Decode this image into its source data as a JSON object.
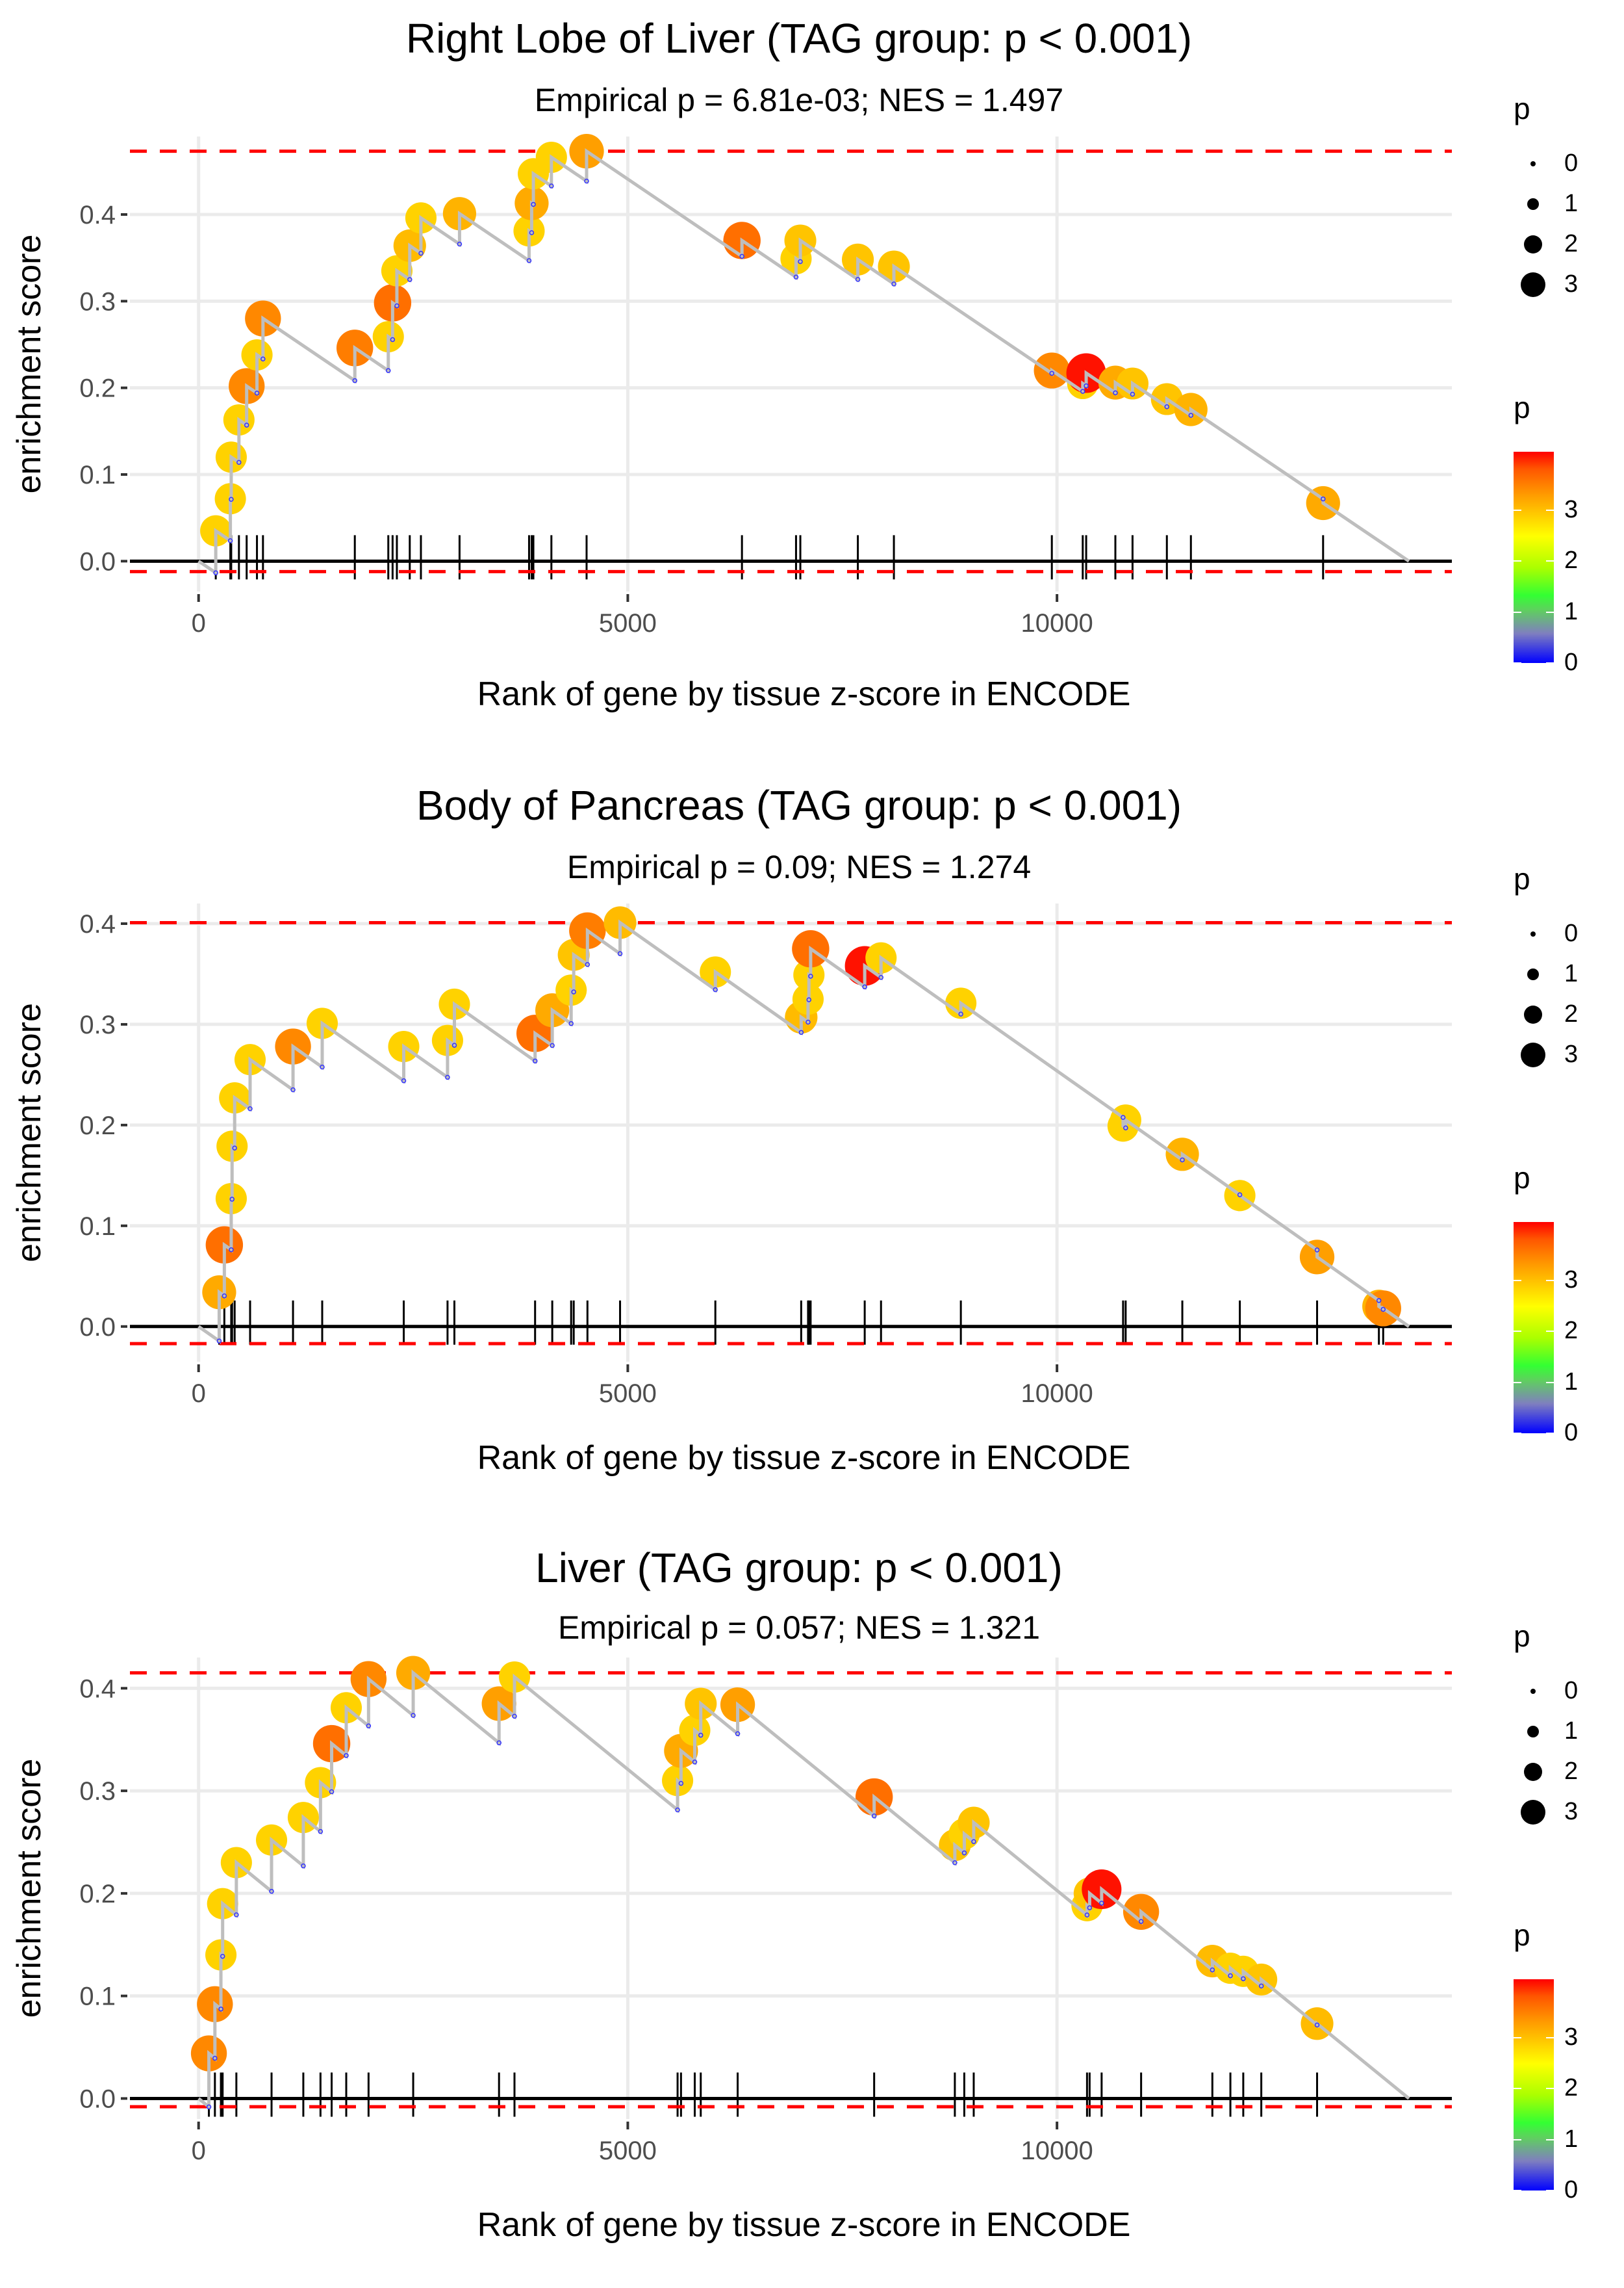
{
  "chart_data": [
    {
      "type": "line",
      "title": "Right Lobe of Liver (TAG group: p < 0.001)",
      "subtitle": "Empirical p = 6.81e-03; NES = 1.497",
      "xlabel": "Rank of gene by tissue z-score in ENCODE",
      "ylabel": "enrichment score",
      "xlim": [
        -800,
        14600
      ],
      "ylim": [
        -0.035,
        0.49
      ],
      "xticks": [
        0,
        5000,
        10000
      ],
      "xtick_labels": [
        "0",
        "5000",
        "10000"
      ],
      "yticks": [
        0.0,
        0.1,
        0.2,
        0.3,
        0.4
      ],
      "ytick_labels": [
        "0.0",
        "0.1",
        "0.2",
        "0.3",
        "0.4"
      ],
      "max_es": 0.473,
      "min_es": -0.012,
      "end_rank": 14100,
      "grid": true,
      "points": [
        {
          "rank": 200,
          "es": 0.035,
          "p": 2.7
        },
        {
          "rank": 370,
          "es": 0.072,
          "p": 2.7
        },
        {
          "rank": 380,
          "es": 0.12,
          "p": 2.7
        },
        {
          "rank": 470,
          "es": 0.163,
          "p": 2.7
        },
        {
          "rank": 560,
          "es": 0.202,
          "p": 3.4
        },
        {
          "rank": 680,
          "es": 0.238,
          "p": 2.7
        },
        {
          "rank": 750,
          "es": 0.28,
          "p": 3.4
        },
        {
          "rank": 1820,
          "es": 0.246,
          "p": 3.5
        },
        {
          "rank": 2210,
          "es": 0.259,
          "p": 2.7
        },
        {
          "rank": 2260,
          "es": 0.298,
          "p": 3.6
        },
        {
          "rank": 2310,
          "es": 0.335,
          "p": 2.7
        },
        {
          "rank": 2460,
          "es": 0.364,
          "p": 2.9
        },
        {
          "rank": 2590,
          "es": 0.396,
          "p": 2.7
        },
        {
          "rank": 3040,
          "es": 0.401,
          "p": 3.0
        },
        {
          "rank": 3850,
          "es": 0.381,
          "p": 2.7
        },
        {
          "rank": 3880,
          "es": 0.413,
          "p": 3.1
        },
        {
          "rank": 3900,
          "es": 0.447,
          "p": 2.7
        },
        {
          "rank": 4110,
          "es": 0.466,
          "p": 2.7
        },
        {
          "rank": 4520,
          "es": 0.473,
          "p": 3.2
        },
        {
          "rank": 6330,
          "es": 0.37,
          "p": 3.6
        },
        {
          "rank": 6960,
          "es": 0.349,
          "p": 2.7
        },
        {
          "rank": 7010,
          "es": 0.37,
          "p": 2.8
        },
        {
          "rank": 7680,
          "es": 0.348,
          "p": 2.8
        },
        {
          "rank": 8100,
          "es": 0.34,
          "p": 2.8
        },
        {
          "rank": 9940,
          "es": 0.22,
          "p": 3.4
        },
        {
          "rank": 10300,
          "es": 0.205,
          "p": 2.7
        },
        {
          "rank": 10340,
          "es": 0.217,
          "p": 3.95
        },
        {
          "rank": 10680,
          "es": 0.206,
          "p": 3.1
        },
        {
          "rank": 10880,
          "es": 0.205,
          "p": 2.8
        },
        {
          "rank": 11280,
          "es": 0.187,
          "p": 2.8
        },
        {
          "rank": 11560,
          "es": 0.175,
          "p": 3.0
        },
        {
          "rank": 13100,
          "es": 0.067,
          "p": 3.1
        }
      ]
    },
    {
      "type": "line",
      "title": "Body of Pancreas (TAG group: p < 0.001)",
      "subtitle": "Empirical p = 0.09; NES = 1.274",
      "xlabel": "Rank of gene by tissue z-score in ENCODE",
      "ylabel": "enrichment score",
      "xlim": [
        -800,
        14600
      ],
      "ylim": [
        -0.035,
        0.42
      ],
      "xticks": [
        0,
        5000,
        10000
      ],
      "xtick_labels": [
        "0",
        "5000",
        "10000"
      ],
      "yticks": [
        0.0,
        0.1,
        0.2,
        0.3,
        0.4
      ],
      "ytick_labels": [
        "0.0",
        "0.1",
        "0.2",
        "0.3",
        "0.4"
      ],
      "max_es": 0.401,
      "min_es": -0.017,
      "end_rank": 14100,
      "grid": true,
      "points": [
        {
          "rank": 240,
          "es": 0.034,
          "p": 3.1
        },
        {
          "rank": 300,
          "es": 0.081,
          "p": 3.6
        },
        {
          "rank": 380,
          "es": 0.127,
          "p": 2.7
        },
        {
          "rank": 390,
          "es": 0.179,
          "p": 2.7
        },
        {
          "rank": 420,
          "es": 0.227,
          "p": 2.7
        },
        {
          "rank": 600,
          "es": 0.265,
          "p": 2.7
        },
        {
          "rank": 1100,
          "es": 0.278,
          "p": 3.4
        },
        {
          "rank": 1440,
          "es": 0.301,
          "p": 2.7
        },
        {
          "rank": 2390,
          "es": 0.278,
          "p": 2.7
        },
        {
          "rank": 2900,
          "es": 0.284,
          "p": 2.7
        },
        {
          "rank": 2980,
          "es": 0.32,
          "p": 2.7
        },
        {
          "rank": 3920,
          "es": 0.291,
          "p": 3.6
        },
        {
          "rank": 4120,
          "es": 0.314,
          "p": 3.1
        },
        {
          "rank": 4340,
          "es": 0.334,
          "p": 2.7
        },
        {
          "rank": 4370,
          "es": 0.369,
          "p": 2.8
        },
        {
          "rank": 4530,
          "es": 0.393,
          "p": 3.5
        },
        {
          "rank": 4910,
          "es": 0.401,
          "p": 2.9
        },
        {
          "rank": 6020,
          "es": 0.352,
          "p": 2.7
        },
        {
          "rank": 7020,
          "es": 0.307,
          "p": 2.9
        },
        {
          "rank": 7100,
          "es": 0.325,
          "p": 2.7
        },
        {
          "rank": 7110,
          "es": 0.349,
          "p": 2.7
        },
        {
          "rank": 7130,
          "es": 0.375,
          "p": 3.6
        },
        {
          "rank": 7760,
          "es": 0.358,
          "p": 3.95
        },
        {
          "rank": 7950,
          "es": 0.366,
          "p": 2.7
        },
        {
          "rank": 8880,
          "es": 0.321,
          "p": 2.7
        },
        {
          "rank": 10770,
          "es": 0.199,
          "p": 2.7
        },
        {
          "rank": 10800,
          "es": 0.205,
          "p": 2.7
        },
        {
          "rank": 11460,
          "es": 0.171,
          "p": 3.0
        },
        {
          "rank": 12130,
          "es": 0.13,
          "p": 2.7
        },
        {
          "rank": 13030,
          "es": 0.069,
          "p": 3.2
        },
        {
          "rank": 13750,
          "es": 0.02,
          "p": 3.0
        },
        {
          "rank": 13800,
          "es": 0.018,
          "p": 3.4
        }
      ]
    },
    {
      "type": "line",
      "title": "Liver (TAG group: p < 0.001)",
      "subtitle": "Empirical p = 0.057; NES = 1.321",
      "xlabel": "Rank of gene by tissue z-score in ENCODE",
      "ylabel": "enrichment score",
      "xlim": [
        -800,
        14600
      ],
      "ylim": [
        -0.02,
        0.43
      ],
      "xticks": [
        0,
        5000,
        10000
      ],
      "xtick_labels": [
        "0",
        "5000",
        "10000"
      ],
      "yticks": [
        0.0,
        0.1,
        0.2,
        0.3,
        0.4
      ],
      "ytick_labels": [
        "0.0",
        "0.1",
        "0.2",
        "0.3",
        "0.4"
      ],
      "max_es": 0.415,
      "min_es": -0.008,
      "end_rank": 14100,
      "grid": true,
      "points": [
        {
          "rank": 120,
          "es": 0.044,
          "p": 3.4
        },
        {
          "rank": 190,
          "es": 0.092,
          "p": 3.4
        },
        {
          "rank": 260,
          "es": 0.14,
          "p": 2.7
        },
        {
          "rank": 280,
          "es": 0.19,
          "p": 2.7
        },
        {
          "rank": 440,
          "es": 0.23,
          "p": 2.7
        },
        {
          "rank": 850,
          "es": 0.252,
          "p": 2.7
        },
        {
          "rank": 1220,
          "es": 0.274,
          "p": 2.7
        },
        {
          "rank": 1420,
          "es": 0.308,
          "p": 2.7
        },
        {
          "rank": 1550,
          "es": 0.346,
          "p": 3.6
        },
        {
          "rank": 1720,
          "es": 0.381,
          "p": 2.7
        },
        {
          "rank": 1980,
          "es": 0.409,
          "p": 3.4
        },
        {
          "rank": 2500,
          "es": 0.415,
          "p": 3.1
        },
        {
          "rank": 3500,
          "es": 0.385,
          "p": 3.2
        },
        {
          "rank": 3680,
          "es": 0.411,
          "p": 2.7
        },
        {
          "rank": 5580,
          "es": 0.31,
          "p": 2.7
        },
        {
          "rank": 5620,
          "es": 0.339,
          "p": 3.1
        },
        {
          "rank": 5780,
          "es": 0.359,
          "p": 2.7
        },
        {
          "rank": 5850,
          "es": 0.385,
          "p": 2.8
        },
        {
          "rank": 6280,
          "es": 0.384,
          "p": 3.2
        },
        {
          "rank": 7870,
          "es": 0.294,
          "p": 3.6
        },
        {
          "rank": 8810,
          "es": 0.247,
          "p": 2.8
        },
        {
          "rank": 8920,
          "es": 0.258,
          "p": 2.7
        },
        {
          "rank": 9030,
          "es": 0.269,
          "p": 2.8
        },
        {
          "rank": 10350,
          "es": 0.188,
          "p": 2.7
        },
        {
          "rank": 10380,
          "es": 0.2,
          "p": 2.8
        },
        {
          "rank": 10520,
          "es": 0.204,
          "p": 3.95
        },
        {
          "rank": 10980,
          "es": 0.182,
          "p": 3.4
        },
        {
          "rank": 11810,
          "es": 0.134,
          "p": 2.9
        },
        {
          "rank": 12020,
          "es": 0.127,
          "p": 2.7
        },
        {
          "rank": 12170,
          "es": 0.124,
          "p": 2.7
        },
        {
          "rank": 12380,
          "es": 0.116,
          "p": 2.8
        },
        {
          "rank": 13030,
          "es": 0.073,
          "p": 2.9
        }
      ]
    }
  ],
  "legend": {
    "size_title": "p",
    "size_labels": [
      "0",
      "1",
      "2",
      "3"
    ],
    "color_title": "p",
    "color_labels": [
      "3",
      "2",
      "1",
      "0"
    ],
    "color_range": [
      0,
      4
    ],
    "colors": {
      "high": "#ff0000",
      "mid_high": "#ffcc00",
      "mid": "#33ff33",
      "low": "#0000ff"
    }
  },
  "colors": {
    "es_line": "#bebebe",
    "threshold_line": "#ff0000",
    "zero_line": "#000000",
    "grid": "#ebebeb",
    "hit_tick": "#000000",
    "axis_text": "#4d4d4d"
  }
}
